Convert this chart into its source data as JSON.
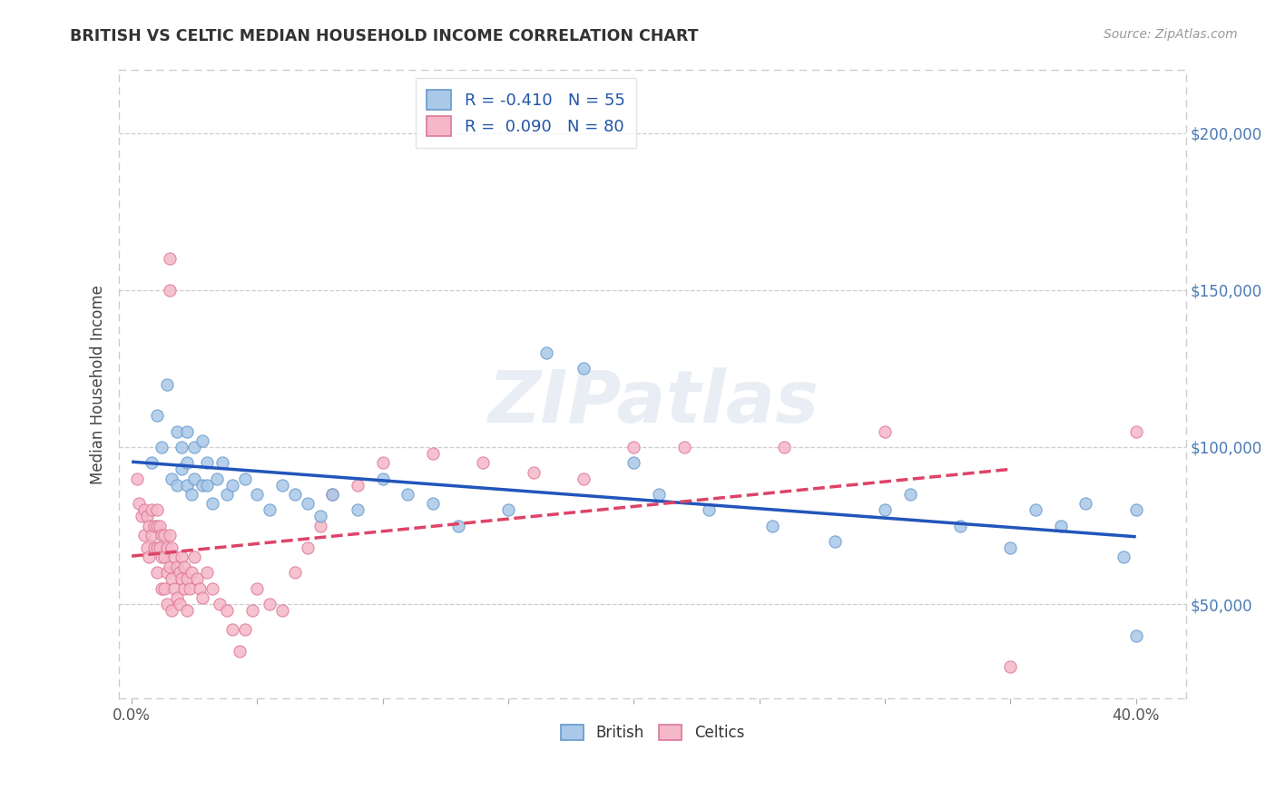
{
  "title": "BRITISH VS CELTIC MEDIAN HOUSEHOLD INCOME CORRELATION CHART",
  "source": "Source: ZipAtlas.com",
  "ylabel": "Median Household Income",
  "xlim": [
    -0.005,
    0.42
  ],
  "ylim": [
    20000,
    220000
  ],
  "yticks": [
    50000,
    100000,
    150000,
    200000
  ],
  "ytick_labels": [
    "$50,000",
    "$100,000",
    "$150,000",
    "$200,000"
  ],
  "xticks": [
    0.0,
    0.05,
    0.1,
    0.15,
    0.2,
    0.25,
    0.3,
    0.35,
    0.4
  ],
  "xtick_labels": [
    "0.0%",
    "",
    "",
    "",
    "",
    "",
    "",
    "",
    "40.0%"
  ],
  "british_color": "#aac8e8",
  "celtics_color": "#f5b8c8",
  "british_edge": "#6699cc",
  "celtics_edge": "#dd7799",
  "trend_british_color": "#2255bb",
  "trend_celtics_color": "#dd4466",
  "R_british": -0.41,
  "N_british": 55,
  "R_celtics": 0.09,
  "N_celtics": 80,
  "background_color": "#ffffff",
  "plot_bg_color": "#ffffff",
  "grid_color": "#cccccc",
  "british_x": [
    0.008,
    0.01,
    0.012,
    0.014,
    0.016,
    0.018,
    0.018,
    0.02,
    0.02,
    0.022,
    0.022,
    0.022,
    0.024,
    0.025,
    0.025,
    0.028,
    0.028,
    0.03,
    0.03,
    0.032,
    0.034,
    0.036,
    0.038,
    0.04,
    0.045,
    0.05,
    0.055,
    0.06,
    0.065,
    0.07,
    0.075,
    0.08,
    0.09,
    0.1,
    0.11,
    0.12,
    0.13,
    0.15,
    0.165,
    0.18,
    0.2,
    0.21,
    0.23,
    0.255,
    0.28,
    0.3,
    0.31,
    0.33,
    0.35,
    0.36,
    0.37,
    0.38,
    0.395,
    0.4,
    0.4
  ],
  "british_y": [
    95000,
    110000,
    100000,
    120000,
    90000,
    105000,
    88000,
    100000,
    93000,
    88000,
    95000,
    105000,
    85000,
    100000,
    90000,
    88000,
    102000,
    95000,
    88000,
    82000,
    90000,
    95000,
    85000,
    88000,
    90000,
    85000,
    80000,
    88000,
    85000,
    82000,
    78000,
    85000,
    80000,
    90000,
    85000,
    82000,
    75000,
    80000,
    130000,
    125000,
    95000,
    85000,
    80000,
    75000,
    70000,
    80000,
    85000,
    75000,
    68000,
    80000,
    75000,
    82000,
    65000,
    80000,
    40000
  ],
  "celtics_x": [
    0.002,
    0.003,
    0.004,
    0.005,
    0.005,
    0.006,
    0.006,
    0.007,
    0.007,
    0.008,
    0.008,
    0.009,
    0.009,
    0.01,
    0.01,
    0.01,
    0.01,
    0.011,
    0.011,
    0.012,
    0.012,
    0.012,
    0.013,
    0.013,
    0.013,
    0.014,
    0.014,
    0.014,
    0.015,
    0.015,
    0.015,
    0.015,
    0.016,
    0.016,
    0.016,
    0.017,
    0.017,
    0.018,
    0.018,
    0.019,
    0.019,
    0.02,
    0.02,
    0.021,
    0.021,
    0.022,
    0.022,
    0.023,
    0.024,
    0.025,
    0.026,
    0.027,
    0.028,
    0.03,
    0.032,
    0.035,
    0.038,
    0.04,
    0.043,
    0.045,
    0.048,
    0.05,
    0.055,
    0.06,
    0.065,
    0.07,
    0.075,
    0.08,
    0.09,
    0.1,
    0.12,
    0.14,
    0.16,
    0.18,
    0.2,
    0.22,
    0.26,
    0.3,
    0.35,
    0.4
  ],
  "celtics_y": [
    90000,
    82000,
    78000,
    80000,
    72000,
    78000,
    68000,
    75000,
    65000,
    80000,
    72000,
    75000,
    68000,
    80000,
    75000,
    68000,
    60000,
    75000,
    68000,
    72000,
    65000,
    55000,
    72000,
    65000,
    55000,
    68000,
    60000,
    50000,
    160000,
    150000,
    72000,
    62000,
    68000,
    58000,
    48000,
    65000,
    55000,
    62000,
    52000,
    60000,
    50000,
    65000,
    58000,
    62000,
    55000,
    58000,
    48000,
    55000,
    60000,
    65000,
    58000,
    55000,
    52000,
    60000,
    55000,
    50000,
    48000,
    42000,
    35000,
    42000,
    48000,
    55000,
    50000,
    48000,
    60000,
    68000,
    75000,
    85000,
    88000,
    95000,
    98000,
    95000,
    92000,
    90000,
    100000,
    100000,
    100000,
    105000,
    30000,
    105000
  ]
}
